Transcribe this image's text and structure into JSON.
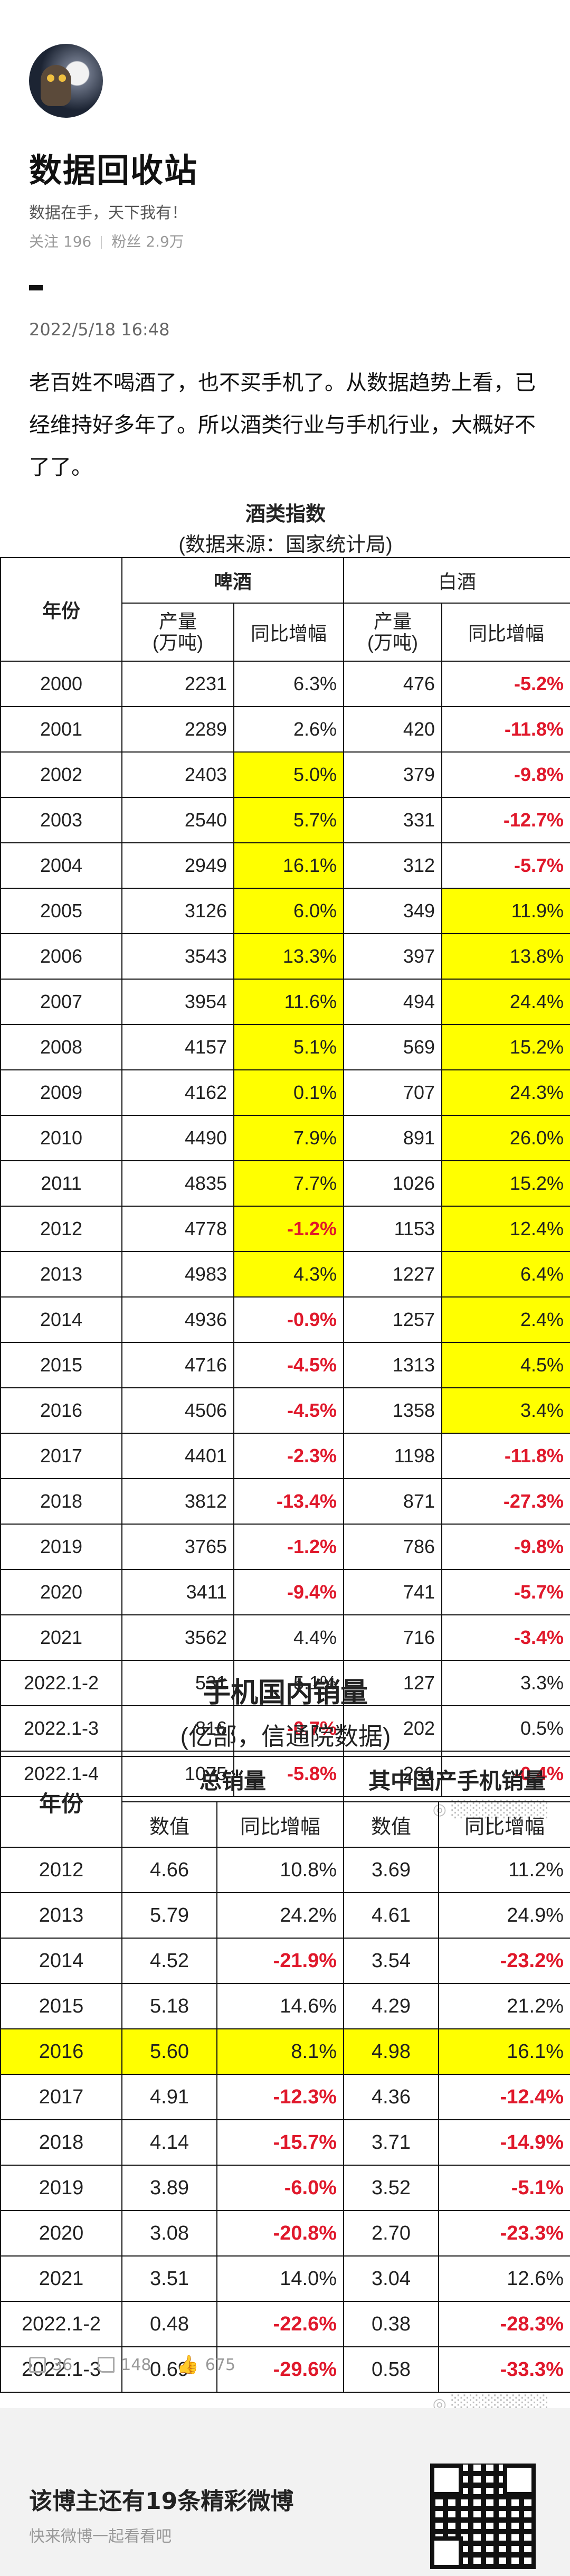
{
  "profile": {
    "name": "数据回收站",
    "slogan": "数据在手，天下我有！",
    "follow": "关注 196",
    "fans": "粉丝 2.9万"
  },
  "post": {
    "time": "2022/5/18 16:48",
    "text": "老百姓不喝酒了，也不买手机了。从数据趋势上看，已经维持好多年了。所以酒类行业与手机行业，大概好不了了。"
  },
  "table1": {
    "title": "酒类指数",
    "subtitle": "(数据来源：国家统计局)",
    "year_label": "年份",
    "beer_label": "啤酒",
    "baijiu_label": "白酒",
    "prod_label": "产量",
    "prod_unit": "(万吨)",
    "yoy_label": "同比增幅",
    "rows": [
      [
        "2000",
        "2231",
        "6.3%",
        "476",
        "-5.2%"
      ],
      [
        "2001",
        "2289",
        "2.6%",
        "420",
        "-11.8%"
      ],
      [
        "2002",
        "2403",
        "5.0%",
        "379",
        "-9.8%"
      ],
      [
        "2003",
        "2540",
        "5.7%",
        "331",
        "-12.7%"
      ],
      [
        "2004",
        "2949",
        "16.1%",
        "312",
        "-5.7%"
      ],
      [
        "2005",
        "3126",
        "6.0%",
        "349",
        "11.9%"
      ],
      [
        "2006",
        "3543",
        "13.3%",
        "397",
        "13.8%"
      ],
      [
        "2007",
        "3954",
        "11.6%",
        "494",
        "24.4%"
      ],
      [
        "2008",
        "4157",
        "5.1%",
        "569",
        "15.2%"
      ],
      [
        "2009",
        "4162",
        "0.1%",
        "707",
        "24.3%"
      ],
      [
        "2010",
        "4490",
        "7.9%",
        "891",
        "26.0%"
      ],
      [
        "2011",
        "4835",
        "7.7%",
        "1026",
        "15.2%"
      ],
      [
        "2012",
        "4778",
        "-1.2%",
        "1153",
        "12.4%"
      ],
      [
        "2013",
        "4983",
        "4.3%",
        "1227",
        "6.4%"
      ],
      [
        "2014",
        "4936",
        "-0.9%",
        "1257",
        "2.4%"
      ],
      [
        "2015",
        "4716",
        "-4.5%",
        "1313",
        "4.5%"
      ],
      [
        "2016",
        "4506",
        "-4.5%",
        "1358",
        "3.4%"
      ],
      [
        "2017",
        "4401",
        "-2.3%",
        "1198",
        "-11.8%"
      ],
      [
        "2018",
        "3812",
        "-13.4%",
        "871",
        "-27.3%"
      ],
      [
        "2019",
        "3765",
        "-1.2%",
        "786",
        "-9.8%"
      ],
      [
        "2020",
        "3411",
        "-9.4%",
        "741",
        "-5.7%"
      ],
      [
        "2021",
        "3562",
        "4.4%",
        "716",
        "-3.4%"
      ],
      [
        "2022.1-2",
        "531",
        "5.1%",
        "127",
        "3.3%"
      ],
      [
        "2022.1-3",
        "816",
        "-0.7%",
        "202",
        "0.5%"
      ],
      [
        "2022.1-4",
        "1075",
        "-5.8%",
        "261",
        "-0.4%"
      ]
    ],
    "beer_highlight": [
      2,
      3,
      4,
      5,
      6,
      7,
      8,
      9,
      10,
      11,
      12,
      13
    ],
    "baijiu_highlight": [
      5,
      6,
      7,
      8,
      9,
      10,
      11,
      12,
      13,
      14,
      15,
      16
    ]
  },
  "table2": {
    "title": "手机国内销量",
    "subtitle": "(亿部，信通院数据)",
    "year_label": "年份",
    "total_label": "总销量",
    "domestic_label": "其中国产手机销量",
    "value_label": "数值",
    "yoy_label": "同比增幅",
    "rows": [
      [
        "2012",
        "4.66",
        "10.8%",
        "3.69",
        "11.2%"
      ],
      [
        "2013",
        "5.79",
        "24.2%",
        "4.61",
        "24.9%"
      ],
      [
        "2014",
        "4.52",
        "-21.9%",
        "3.54",
        "-23.2%"
      ],
      [
        "2015",
        "5.18",
        "14.6%",
        "4.29",
        "21.2%"
      ],
      [
        "2016",
        "5.60",
        "8.1%",
        "4.98",
        "16.1%"
      ],
      [
        "2017",
        "4.91",
        "-12.3%",
        "4.36",
        "-12.4%"
      ],
      [
        "2018",
        "4.14",
        "-15.7%",
        "3.71",
        "-14.9%"
      ],
      [
        "2019",
        "3.89",
        "-6.0%",
        "3.52",
        "-5.1%"
      ],
      [
        "2020",
        "3.08",
        "-20.8%",
        "2.70",
        "-23.3%"
      ],
      [
        "2021",
        "3.51",
        "14.0%",
        "3.04",
        "12.6%"
      ],
      [
        "2022.1-2",
        "0.48",
        "-22.6%",
        "0.38",
        "-28.3%"
      ],
      [
        "2022.1-3",
        "0.69",
        "-29.6%",
        "0.58",
        "-33.3%"
      ]
    ],
    "highlight_year": "2016"
  },
  "actions": {
    "share": "36",
    "comment": "148",
    "like": "675"
  },
  "footer": {
    "title": "该博主还有19条精彩微博",
    "subtitle": "快来微博一起看看吧"
  },
  "colors": {
    "highlight": "#ffff00",
    "negative": "#e0182b"
  }
}
